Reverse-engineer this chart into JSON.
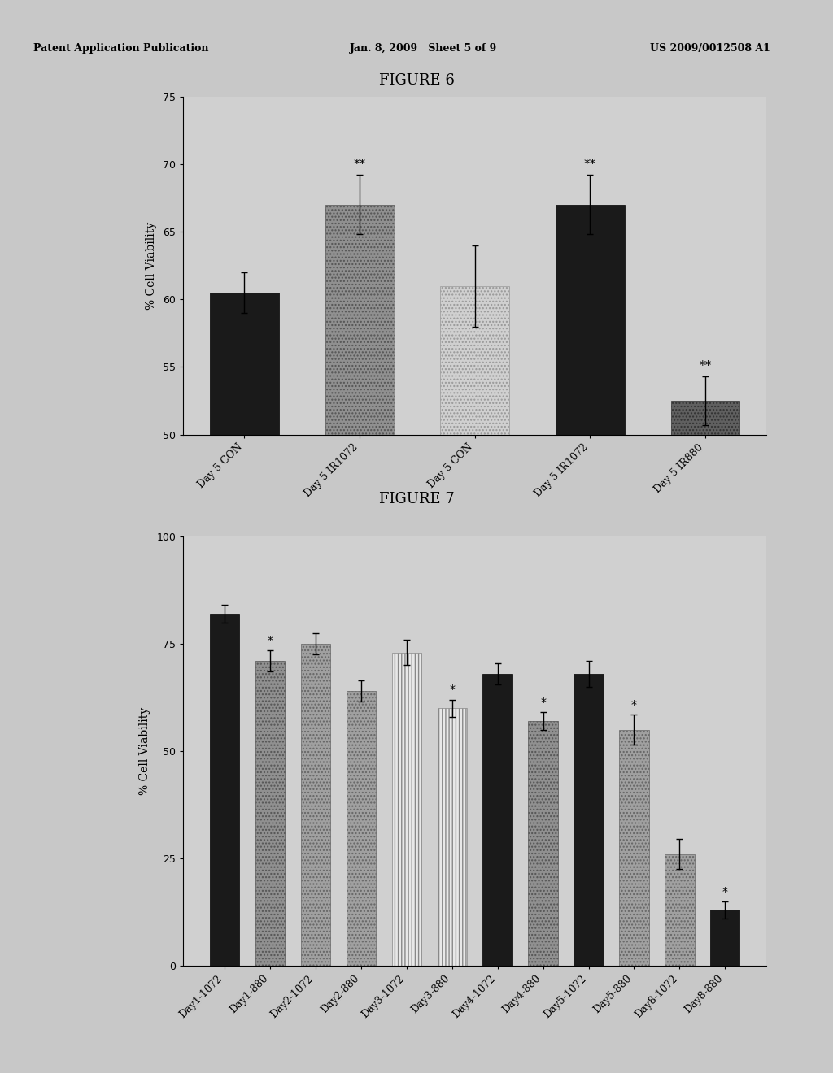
{
  "fig6": {
    "title": "FIGURE 6",
    "ylabel": "% Cell Viability",
    "ylim": [
      50,
      75
    ],
    "yticks": [
      50,
      55,
      60,
      65,
      70,
      75
    ],
    "categories": [
      "Day 5 CON",
      "Day 5 IR1072",
      "Day 5 CON",
      "Day 5 IR1072",
      "Day 5 IR880"
    ],
    "values": [
      60.5,
      67.0,
      61.0,
      67.0,
      52.5
    ],
    "errors": [
      1.5,
      2.2,
      3.0,
      2.2,
      1.8
    ],
    "sig_labels": [
      "",
      "**",
      "",
      "**",
      "**"
    ],
    "bar_styles": [
      "dark",
      "speckled_gray",
      "light_speckled",
      "dark",
      "speckled_dark"
    ]
  },
  "fig7": {
    "title": "FIGURE 7",
    "ylabel": "% Cell Viability",
    "ylim": [
      0,
      100
    ],
    "yticks": [
      0,
      25,
      50,
      75,
      100
    ],
    "categories": [
      "Day1-1072",
      "Day1-880",
      "Day2-1072",
      "Day2-880",
      "Day3-1072",
      "Day3-880",
      "Day4-1072",
      "Day4-880",
      "Day5-1072",
      "Day5-880",
      "Day8-1072",
      "Day8-880"
    ],
    "values": [
      82,
      71,
      75,
      64,
      73,
      60,
      68,
      57,
      68,
      55,
      26,
      13
    ],
    "errors": [
      2.0,
      2.5,
      2.5,
      2.5,
      3.0,
      2.0,
      2.5,
      2.0,
      3.0,
      3.5,
      3.5,
      2.0
    ],
    "sig_labels": [
      "",
      "*",
      "",
      "",
      "",
      "*",
      "",
      "*",
      "",
      "*",
      "",
      "*"
    ],
    "bar_styles": [
      "dark",
      "speckled_gray",
      "speckled_gray2",
      "speckled_gray2",
      "white_hatched",
      "white_hatched",
      "dark",
      "speckled_gray",
      "dark",
      "speckled_gray2",
      "speckled_gray2",
      "dark"
    ]
  },
  "page_header": {
    "left": "Patent Application Publication",
    "center": "Jan. 8, 2009   Sheet 5 of 9",
    "right": "US 2009/0012508 A1"
  },
  "page_bg": "#c8c8c8",
  "inner_bg": "#ffffff",
  "chart_bg": "#d0d0d0"
}
